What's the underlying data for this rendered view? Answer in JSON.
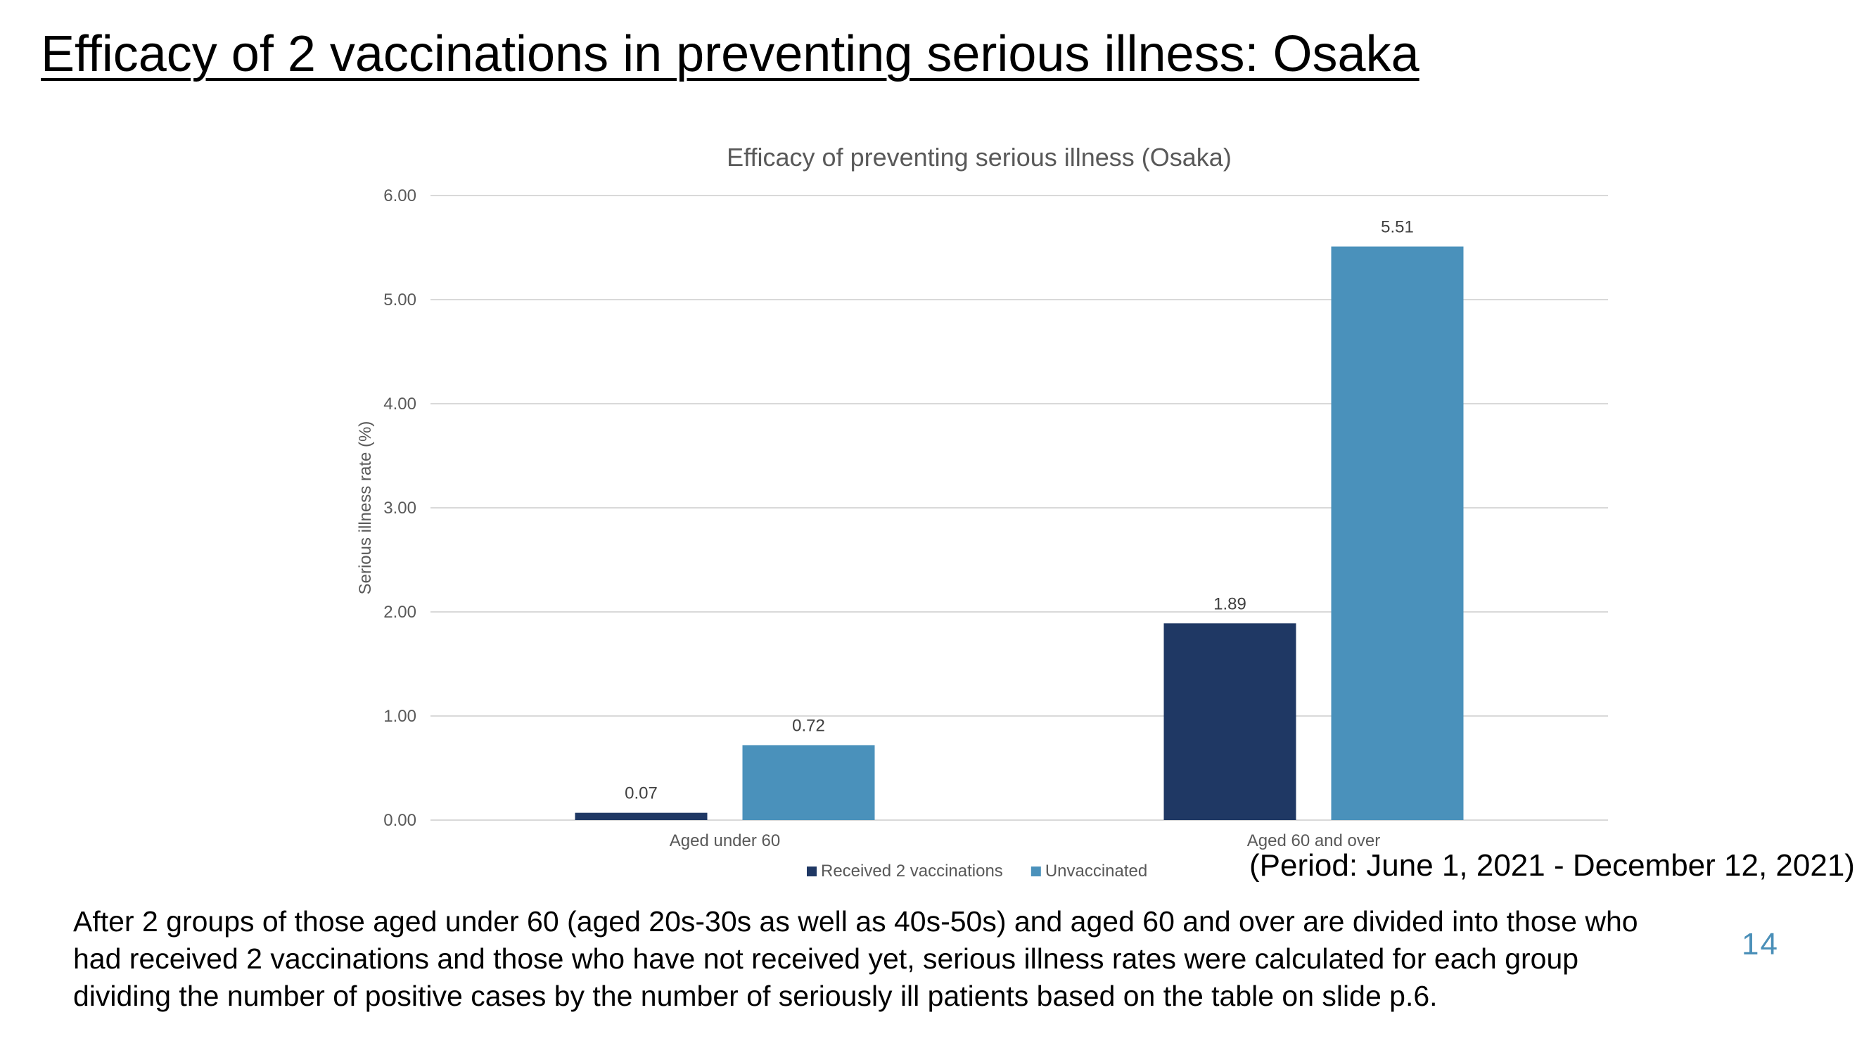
{
  "slide": {
    "title": "Efficacy of 2 vaccinations in preventing serious illness: Osaka",
    "period": "(Period: June 1, 2021 - December 12, 2021)",
    "footnote": "After 2 groups of those aged under 60 (aged 20s-30s as well as 40s-50s) and aged 60 and over are divided into those who had received 2 vaccinations and those who have not received yet, serious illness rates were calculated for each group dividing the number of positive cases by the number of seriously ill patients based on the table on slide p.6.",
    "page_number": "14"
  },
  "chart_data": {
    "type": "bar",
    "title": "Efficacy of preventing serious illness (Osaka)",
    "xlabel": "",
    "ylabel": "Serious illness rate (%)",
    "categories": [
      "Aged under 60",
      "Aged 60 and over"
    ],
    "series": [
      {
        "name": "Received 2 vaccinations",
        "values": [
          0.07,
          1.89
        ],
        "color": "#1f3864"
      },
      {
        "name": "Unvaccinated",
        "values": [
          0.72,
          5.51
        ],
        "color": "#4a91bb"
      }
    ],
    "ylim": [
      0,
      6
    ],
    "yticks": [
      "0.00",
      "1.00",
      "2.00",
      "3.00",
      "4.00",
      "5.00",
      "6.00"
    ],
    "grid": true,
    "legend": "bottom"
  }
}
